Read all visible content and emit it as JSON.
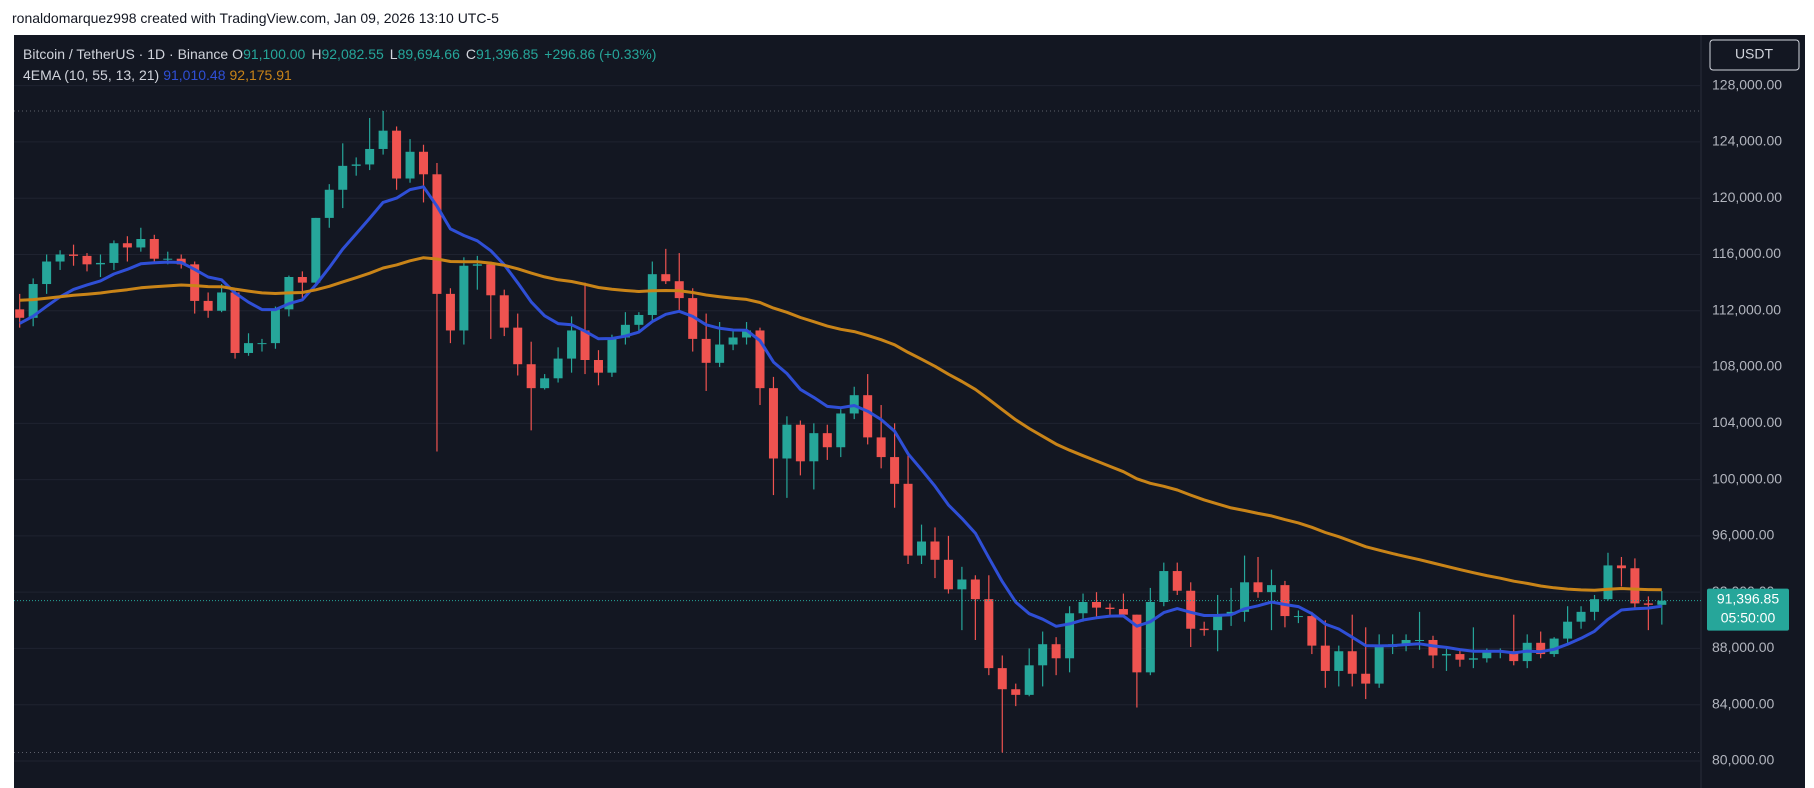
{
  "header": {
    "text": "ronaldomarquez998 created with TradingView.com, Jan 09, 2026 13:10 UTC-5"
  },
  "chart_data": {
    "type": "candlestick",
    "legend": {
      "symbol": "Bitcoin / TetherUS · 1D · Binance",
      "fields": [
        {
          "key": "O",
          "value": "91,100.00"
        },
        {
          "key": "H",
          "value": "92,082.55"
        },
        {
          "key": "L",
          "value": "89,694.66"
        },
        {
          "key": "C",
          "value": "91,396.85"
        }
      ],
      "change": "+296.86 (+0.33%)"
    },
    "currency": "USDT",
    "up_color": "#26a69a",
    "down_color": "#ef5350",
    "ylim": [
      78080,
      131600
    ],
    "yticks": [
      {
        "value": 80000,
        "label": "80,000.00"
      },
      {
        "value": 84000,
        "label": "84,000.00"
      },
      {
        "value": 88000,
        "label": "88,000.00"
      },
      {
        "value": 92000,
        "label": "92,000.00"
      },
      {
        "value": 96000,
        "label": "96,000.00"
      },
      {
        "value": 100000,
        "label": "100,000.00"
      },
      {
        "value": 104000,
        "label": "104,000.00"
      },
      {
        "value": 108000,
        "label": "108,000.00"
      },
      {
        "value": 112000,
        "label": "112,000.00"
      },
      {
        "value": 116000,
        "label": "116,000.00"
      },
      {
        "value": 120000,
        "label": "120,000.00"
      },
      {
        "value": 124000,
        "label": "124,000.00"
      },
      {
        "value": 128000,
        "label": "128,000.00"
      }
    ],
    "grid": true,
    "open": [
      112100,
      111500,
      113900,
      115500,
      116000,
      115900,
      115300,
      115400,
      116800,
      116500,
      117100,
      115700,
      115700,
      115300,
      112700,
      112000,
      113300,
      109000,
      109700,
      109700,
      112100,
      114400,
      114000,
      118600,
      120600,
      122300,
      122400,
      123500,
      124800,
      121400,
      123300,
      121700,
      113200,
      110600,
      115200,
      115300,
      113100,
      110800,
      108200,
      106500,
      107200,
      108600,
      110600,
      108500,
      107600,
      110100,
      111000,
      111700,
      114600,
      114100,
      112900,
      110000,
      108300,
      109600,
      110100,
      110600,
      106500,
      101500,
      103900,
      101300,
      103300,
      102300,
      104700,
      106000,
      103000,
      101600,
      99700,
      94600,
      95600,
      94300,
      92200,
      92900,
      91500,
      86600,
      85100,
      84700,
      86800,
      88300,
      87300,
      90500,
      91300,
      90900,
      90800,
      90400,
      86300,
      91300,
      93500,
      92100,
      89400,
      89300,
      90400,
      90600,
      92700,
      92000,
      92500,
      90300,
      90300,
      88200,
      86400,
      87800,
      86200,
      85500,
      88100,
      88300,
      88600,
      88600,
      87500,
      87600,
      87200,
      87300,
      87800,
      87800,
      87100,
      88400,
      87600,
      88700,
      89900,
      90600,
      91500,
      93900,
      93700,
      91200,
      91100
    ],
    "high": [
      113200,
      114300,
      116000,
      116300,
      116700,
      116100,
      116000,
      117000,
      117300,
      117900,
      117400,
      116200,
      116000,
      115500,
      113300,
      113900,
      113500,
      110400,
      110000,
      112300,
      114500,
      114800,
      118600,
      121000,
      123900,
      122900,
      125700,
      126200,
      125100,
      124200,
      123800,
      122500,
      113600,
      115800,
      115900,
      115500,
      113500,
      111800,
      109800,
      107500,
      109400,
      111600,
      114000,
      109200,
      110300,
      111900,
      111900,
      115500,
      116400,
      116100,
      113600,
      111800,
      111200,
      110700,
      111200,
      110800,
      107300,
      104500,
      104200,
      104000,
      103900,
      105000,
      106600,
      107500,
      105300,
      104000,
      101800,
      96800,
      96600,
      96000,
      93800,
      93200,
      93200,
      87500,
      85500,
      88000,
      89200,
      88800,
      91000,
      91900,
      92000,
      91200,
      91900,
      90400,
      92300,
      94100,
      94100,
      92700,
      89900,
      91800,
      92300,
      94600,
      94500,
      93600,
      92800,
      90700,
      90600,
      90000,
      88200,
      90400,
      89500,
      89000,
      89000,
      89000,
      90600,
      88900,
      88000,
      88000,
      89500,
      88000,
      88000,
      90400,
      89000,
      89200,
      88800,
      91000,
      91000,
      91800,
      94800,
      94500,
      94400,
      91700,
      92082.55
    ],
    "low": [
      110800,
      110900,
      113200,
      114900,
      115200,
      114800,
      114400,
      114900,
      115500,
      116200,
      115400,
      115300,
      115000,
      111800,
      111500,
      111900,
      108600,
      108800,
      109100,
      109300,
      111600,
      112700,
      113900,
      117900,
      119300,
      121600,
      122000,
      123100,
      120600,
      121100,
      119700,
      102000,
      109700,
      109600,
      113500,
      110000,
      110200,
      107400,
      103500,
      106400,
      106900,
      107600,
      107500,
      106700,
      107300,
      109600,
      110500,
      111300,
      113900,
      112000,
      109100,
      106300,
      108000,
      109200,
      109600,
      105300,
      98900,
      98700,
      100300,
      99300,
      101400,
      101600,
      104300,
      102500,
      100800,
      98000,
      94000,
      94000,
      93000,
      91900,
      89300,
      88600,
      86100,
      80600,
      83900,
      84600,
      85300,
      86100,
      86300,
      89900,
      90200,
      90300,
      90200,
      83800,
      86100,
      91000,
      91800,
      88100,
      88900,
      87800,
      89600,
      89900,
      91600,
      89300,
      89500,
      89800,
      87600,
      85200,
      85300,
      85300,
      84400,
      85200,
      87600,
      87800,
      87900,
      86600,
      86400,
      86700,
      86600,
      87000,
      87300,
      86800,
      86600,
      87300,
      87400,
      88400,
      89400,
      90000,
      91400,
      92400,
      90900,
      89300,
      89694.66
    ],
    "close": [
      111500,
      113900,
      115500,
      116000,
      115900,
      115300,
      115400,
      116800,
      116500,
      117100,
      115700,
      115700,
      115300,
      112700,
      112000,
      113300,
      109000,
      109700,
      109700,
      112100,
      114400,
      114000,
      118600,
      120600,
      122300,
      122400,
      123500,
      124800,
      121400,
      123300,
      121700,
      113200,
      110600,
      115200,
      115300,
      113100,
      110800,
      108200,
      106500,
      107200,
      108600,
      110600,
      108500,
      107600,
      110100,
      111000,
      111700,
      114600,
      114100,
      112900,
      110000,
      108300,
      109600,
      110100,
      110600,
      106500,
      101500,
      103900,
      101300,
      103300,
      102300,
      104700,
      106000,
      103000,
      101600,
      99700,
      94600,
      95600,
      94300,
      92200,
      92900,
      91500,
      86600,
      85100,
      84700,
      86800,
      88300,
      87300,
      90500,
      91300,
      90900,
      90800,
      90400,
      86300,
      91300,
      93500,
      92100,
      89400,
      89300,
      90400,
      90600,
      92700,
      92000,
      92500,
      90300,
      90300,
      88200,
      86400,
      87800,
      86200,
      85500,
      88100,
      88300,
      88600,
      88600,
      87500,
      87600,
      87200,
      87300,
      87800,
      87800,
      87100,
      88400,
      87600,
      88700,
      89900,
      90600,
      91500,
      93900,
      93700,
      91200,
      91100,
      91396.85
    ],
    "price_label": {
      "value_label": "91,396.85",
      "countdown": "05:50:00"
    },
    "indicator": {
      "name": "4EMA (10, 55, 13, 21)",
      "lines": [
        {
          "color": "#2f4fd6",
          "value_label": "91,010.48",
          "values": [
            111100,
            111610,
            112320,
            112990,
            113520,
            113840,
            114120,
            114610,
            114950,
            115340,
            115410,
            115460,
            115430,
            114940,
            114400,
            114200,
            113260,
            112610,
            112080,
            112080,
            112500,
            112780,
            113840,
            115070,
            116380,
            117480,
            118570,
            119700,
            120010,
            120610,
            120810,
            119430,
            117820,
            117350,
            116970,
            116270,
            115270,
            113990,
            112630,
            111640,
            111090,
            111000,
            110550,
            110010,
            110030,
            110200,
            110480,
            111230,
            111750,
            111960,
            111600,
            111000,
            110750,
            110630,
            110620,
            109870,
            108350,
            107540,
            106410,
            105840,
            105200,
            105110,
            105270,
            104860,
            104270,
            103440,
            101830,
            100700,
            99530,
            98200,
            97240,
            96190,
            94450,
            92750,
            91290,
            90470,
            90080,
            89570,
            89740,
            90020,
            90180,
            90300,
            90310,
            89580,
            89900,
            90550,
            90830,
            90570,
            90340,
            90350,
            90400,
            90820,
            91030,
            91300,
            91120,
            90970,
            90470,
            89730,
            89380,
            88800,
            88200,
            88180,
            88200,
            88270,
            88330,
            88180,
            88070,
            87920,
            87800,
            87800,
            87800,
            87680,
            87810,
            87770,
            87940,
            88300,
            88720,
            89220,
            90070,
            90730,
            90820,
            90870,
            91010.48
          ]
        },
        {
          "color": "#c98418",
          "value_label": "92,175.91",
          "values": [
            112750,
            112790,
            112890,
            113000,
            113100,
            113180,
            113260,
            113390,
            113500,
            113630,
            113700,
            113770,
            113830,
            113790,
            113720,
            113710,
            113540,
            113400,
            113270,
            113230,
            113270,
            113300,
            113490,
            113740,
            114050,
            114350,
            114670,
            115040,
            115260,
            115550,
            115770,
            115680,
            115500,
            115480,
            115480,
            115390,
            115230,
            114980,
            114680,
            114410,
            114200,
            114080,
            113880,
            113650,
            113530,
            113440,
            113370,
            113420,
            113440,
            113420,
            113300,
            113120,
            113000,
            112890,
            112810,
            112590,
            112190,
            111890,
            111520,
            111220,
            110910,
            110680,
            110520,
            110250,
            109940,
            109580,
            109040,
            108560,
            108050,
            107490,
            106970,
            106410,
            105710,
            104970,
            104250,
            103630,
            103080,
            102520,
            102090,
            101700,
            101320,
            100940,
            100560,
            100060,
            99740,
            99520,
            99260,
            98900,
            98560,
            98270,
            97990,
            97800,
            97600,
            97420,
            97160,
            96920,
            96610,
            96240,
            95940,
            95590,
            95230,
            94980,
            94740,
            94520,
            94310,
            94070,
            93840,
            93600,
            93380,
            93180,
            92990,
            92780,
            92620,
            92440,
            92310,
            92220,
            92160,
            92140,
            92200,
            92260,
            92220,
            92180,
            92175.91
          ]
        }
      ]
    }
  }
}
